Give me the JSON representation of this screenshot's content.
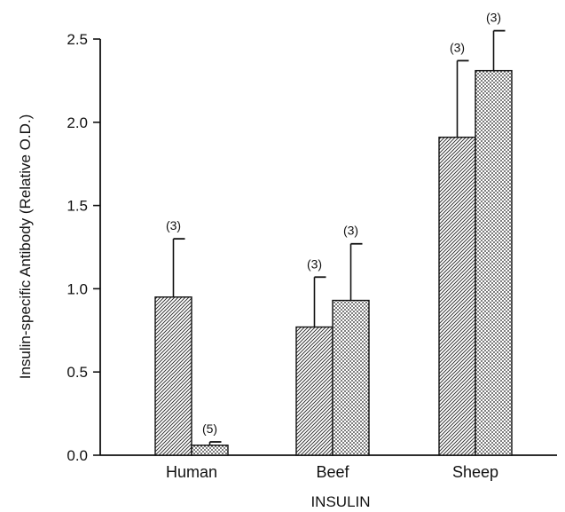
{
  "chart_data": {
    "type": "bar",
    "title": "",
    "xlabel": "INSULIN",
    "ylabel": "Insulin-specific Antibody (Relative O.D.)",
    "ylim": [
      0,
      2.5
    ],
    "yticks": [
      "0.0",
      "0.5",
      "1.0",
      "1.5",
      "2.0",
      "2.5"
    ],
    "categories": [
      "Human",
      "Beef",
      "Sheep"
    ],
    "grid": false,
    "legend": "none",
    "series": [
      {
        "pattern": "diagonal-hatch",
        "values": [
          0.95,
          0.77,
          1.91
        ],
        "error": [
          0.35,
          0.3,
          0.46
        ],
        "n_labels": [
          "(3)",
          "(3)",
          "(3)"
        ]
      },
      {
        "pattern": "dotted",
        "values": [
          0.06,
          0.93,
          2.31
        ],
        "error": [
          0.02,
          0.34,
          0.24
        ],
        "n_labels": [
          "(5)",
          "(3)",
          "(3)"
        ]
      }
    ],
    "colors": {
      "ink": "#111111",
      "background": "#ffffff"
    }
  }
}
